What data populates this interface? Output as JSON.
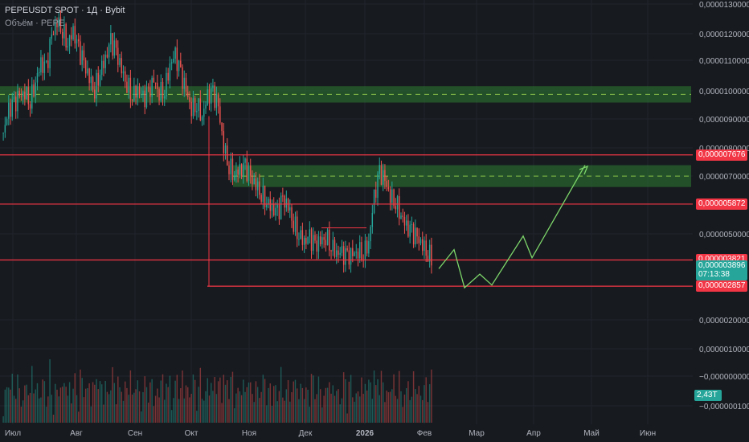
{
  "header": {
    "symbol_line": "PEPEUSDT SPOT · 1Д · Bybit",
    "volume_line": "Объём · PEPE"
  },
  "colors": {
    "background": "#171a1f",
    "up": "#26a69a",
    "down": "#ef5350",
    "zone": "#2e7d32",
    "level_line": "#f23645",
    "projection": "#7dd66a"
  },
  "chart_data": {
    "type": "candlestick",
    "price_ticks": [
      "0,0000130000",
      "0,0000120000",
      "0,0000110000",
      "0,0000100000",
      "0,0000090000",
      "0,0000080000",
      "0,0000070000",
      "0,0000050000",
      "0,0000020000",
      "0,0000010000",
      "−0,0000000000",
      "−0,0000001000"
    ],
    "time_ticks": [
      "Июл",
      "Авг",
      "Сен",
      "Окт",
      "Ноя",
      "Дек",
      "2026",
      "Фев",
      "Мар",
      "Апр",
      "Май",
      "Июн"
    ],
    "price_ylim": [
      1.9e-06,
      1.31e-05
    ],
    "levels": [
      {
        "price": 7.676e-06,
        "label": "0,000007676"
      },
      {
        "price": 5.872e-06,
        "label": "0,000005872"
      },
      {
        "price": 3.821e-06,
        "label": "0,000003821"
      },
      {
        "price": 2.857e-06,
        "label": "0,000002857"
      }
    ],
    "last_price": {
      "label": "0,000003896",
      "countdown": "07:13:38"
    },
    "volume_label": "2,43T",
    "zones": [
      {
        "top": 1.02e-05,
        "bottom": 9.6e-06,
        "mid": 9.9e-06
      },
      {
        "top": 7.3e-06,
        "bottom": 6.5e-06,
        "mid": 6.9e-06
      }
    ],
    "projection_path": [
      [
        3.5e-06,
        3.9e-06
      ],
      [
        4.2e-06,
        3.4e-06
      ],
      [
        3.1e-06,
        2.8e-06
      ],
      [
        3e-06,
        2.9e-06
      ],
      [
        4.1e-06,
        4.7e-06
      ],
      [
        3.9e-06,
        7.3e-06
      ]
    ],
    "candles_close_series": [
      8.5e-06,
      9.3e-06,
      9.5e-06,
      9.8e-06,
      1e-05,
      9.7e-06,
      1.04e-05,
      1.1e-05,
      1.08e-05,
      1.2e-05,
      1.26e-05,
      1.23e-05,
      1.18e-05,
      1.22e-05,
      1.15e-05,
      1.1e-05,
      1.05e-05,
      1.01e-05,
      1.08e-05,
      1.12e-05,
      1.18e-05,
      1.14e-05,
      1.08e-05,
      1.03e-05,
      9.9e-06,
      1.01e-05,
      9.7e-06,
      9.9e-06,
      1.04e-05,
      1e-05,
      1.01e-05,
      1.1e-05,
      1.13e-05,
      1.06e-05,
      1e-05,
      9.4e-06,
      9.6e-06,
      9.1e-06,
      9.8e-06,
      9.9e-06,
      9.4e-06,
      8e-06,
      7.3e-06,
      7e-06,
      7.1e-06,
      7.2e-06,
      6.8e-06,
      6.6e-06,
      6.3e-06,
      6e-06,
      5.7e-06,
      5.5e-06,
      6e-06,
      5.8e-06,
      5.2e-06,
      4.8e-06,
      4.5e-06,
      4.6e-06,
      4.3e-06,
      4.5e-06,
      4.7e-06,
      4.4e-06,
      4.1e-06,
      4e-06,
      3.9e-06,
      4e-06,
      4.2e-06,
      4.1e-06,
      4.5e-06,
      6.1e-06,
      7e-06,
      6.7e-06,
      6.2e-06,
      6e-06,
      5.5e-06,
      5e-06,
      4.8e-06,
      4.6e-06,
      4.4e-06,
      4.1e-06,
      3.9e-06
    ]
  }
}
